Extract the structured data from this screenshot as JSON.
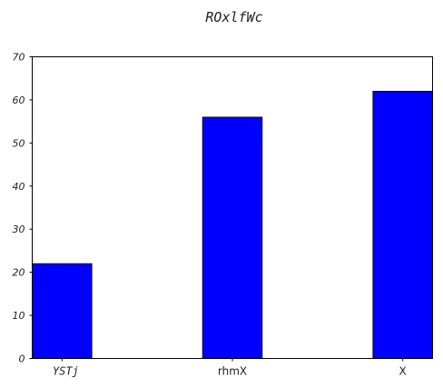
{
  "chart_data": {
    "type": "bar",
    "title": "ROxlfWc",
    "xlabel": "",
    "ylabel": "",
    "categories": [
      "YSTj",
      "rhmX",
      "X"
    ],
    "values": [
      22,
      56,
      62
    ],
    "ylim": [
      0,
      70
    ],
    "yticks": [
      "0",
      "10",
      "20",
      "30",
      "40",
      "50",
      "60",
      "70"
    ],
    "grid": false,
    "legend": "none",
    "colors": {
      "bar": "#0000ff",
      "frame": "#000000",
      "text": "#222222"
    }
  }
}
